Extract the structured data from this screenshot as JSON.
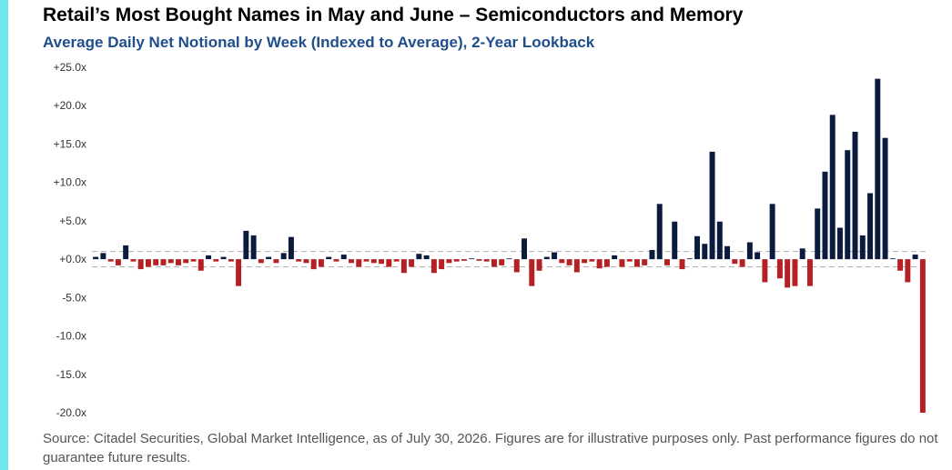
{
  "header": {
    "title": "Retail’s Most Bought Names in May and June – Semiconductors and Memory",
    "subtitle": "Average Daily Net Notional by Week (Indexed to Average), 2-Year Lookback"
  },
  "footer": {
    "source": "Source: Citadel Securities, Global Market Intelligence, as of July 30, 2026. Figures are for illustrative purposes only. Past performance figures do not guarantee future results."
  },
  "colors": {
    "accent": "#6ee6ee",
    "positive": "#0b1b3e",
    "negative": "#b52025",
    "title": "#000000",
    "subtitle": "#1f4e8c",
    "reference_line": "#b0b0b0"
  },
  "chart_data": {
    "type": "bar",
    "title": "Retail’s Most Bought Names in May and June – Semiconductors and Memory",
    "subtitle": "Average Daily Net Notional by Week (Indexed to Average), 2-Year Lookback",
    "xlabel": "",
    "ylabel": "",
    "ylim": [
      -20,
      25
    ],
    "yticks": [
      25,
      20,
      15,
      10,
      5,
      0,
      -5,
      -10,
      -15,
      -20
    ],
    "ytick_labels": [
      "+25.0x",
      "+20.0x",
      "+15.0x",
      "+10.0x",
      "+5.0x",
      "+0.0x",
      "-5.0x",
      "-10.0x",
      "-15.0x",
      "-20.0x"
    ],
    "reference_lines": [
      1,
      -1
    ],
    "grid": false,
    "legend": "none",
    "values": [
      0.3,
      0.8,
      -0.3,
      -0.8,
      1.8,
      -0.3,
      -1.3,
      -1.0,
      -0.8,
      -0.8,
      -0.5,
      -0.8,
      -0.5,
      -0.3,
      -1.5,
      0.5,
      -0.3,
      0.3,
      -0.3,
      -3.5,
      3.7,
      3.1,
      -0.5,
      0.3,
      -0.5,
      0.8,
      2.9,
      -0.3,
      -0.5,
      -1.3,
      -1.0,
      0.3,
      -0.3,
      0.6,
      -0.5,
      -1.0,
      -0.3,
      -0.5,
      -0.6,
      -1.0,
      -0.3,
      -1.8,
      -1.0,
      0.7,
      0.5,
      -1.8,
      -1.3,
      -0.5,
      -0.3,
      -0.2,
      0.1,
      -0.2,
      -0.3,
      -1.0,
      -0.8,
      0.1,
      -1.7,
      2.7,
      -3.5,
      -1.5,
      0.3,
      0.9,
      -0.5,
      -0.8,
      -1.7,
      -0.5,
      -0.3,
      -1.2,
      -1.0,
      0.5,
      -1.0,
      -0.3,
      -1.0,
      -0.8,
      1.2,
      7.2,
      -0.8,
      4.9,
      -1.3,
      0.1,
      3.0,
      2.0,
      14.0,
      4.9,
      1.7,
      -0.6,
      -1.0,
      2.2,
      0.9,
      -3.0,
      7.2,
      -2.5,
      -3.7,
      -3.5,
      1.4,
      -3.5,
      6.6,
      11.4,
      18.8,
      4.1,
      14.2,
      16.6,
      3.1,
      8.6,
      23.5,
      15.8,
      0.1,
      -1.5,
      -3.0,
      0.6,
      -20.0
    ]
  }
}
